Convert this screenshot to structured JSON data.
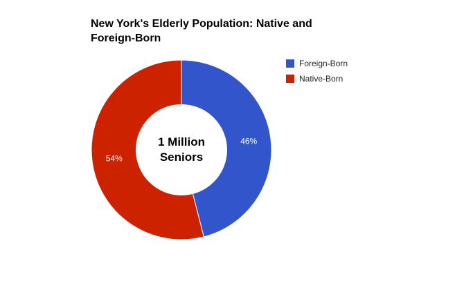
{
  "chart_data": {
    "type": "pie",
    "title_lines": [
      "New York's Elderly Population: Native and",
      "Foreign-Born"
    ],
    "center_label": [
      "1 Million",
      "Seniors"
    ],
    "slices": [
      {
        "label": "Foreign-Born",
        "value": 46,
        "value_label": "46%",
        "color": "#3355cc"
      },
      {
        "label": "Native-Born",
        "value": 54,
        "value_label": "54%",
        "color": "#cc2200"
      }
    ],
    "legend_position": "right",
    "donut": true
  }
}
